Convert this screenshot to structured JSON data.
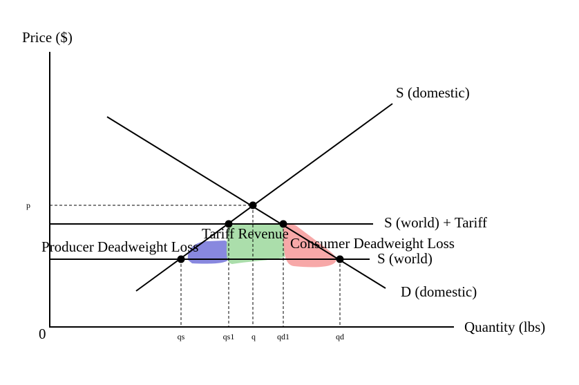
{
  "axes": {
    "y_label": "Price ($)",
    "x_label": "Quantity (lbs)",
    "origin_label": "0"
  },
  "curves": {
    "supply_domestic": "S (domestic)",
    "demand_domestic": "D (domestic)",
    "supply_world_tariff": "S (world) + Tariff",
    "supply_world": "S (world)"
  },
  "regions": {
    "tariff_revenue": "Tariff Revenue",
    "producer_dwl": "Producer Deadweight Loss",
    "consumer_dwl": "Consumer Deadweight Loss"
  },
  "price_ticks": {
    "p": "p"
  },
  "quantity_ticks": {
    "qs": "qs",
    "qs1": "qs1",
    "q": "q",
    "qd1": "qd1",
    "qd": "qd"
  },
  "colors": {
    "producer_dwl": "#7b7bdc",
    "tariff_revenue": "#a6dca6",
    "consumer_dwl": "#f7a3a3"
  }
}
